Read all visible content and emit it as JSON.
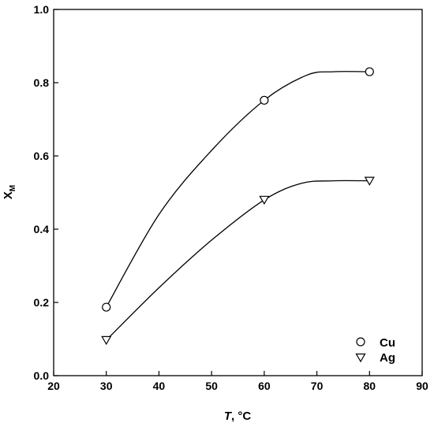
{
  "chart_data": {
    "type": "line",
    "xlabel": "T, °C",
    "xlabel_italic_part": "T",
    "xlabel_rest": ", °C",
    "ylabel": "X",
    "ylabel_subscript": "M",
    "xlim": [
      20,
      90
    ],
    "ylim": [
      0.0,
      1.0
    ],
    "xticks": [
      20,
      30,
      40,
      50,
      60,
      70,
      80,
      90
    ],
    "yticks": [
      0.0,
      0.2,
      0.4,
      0.6,
      0.8,
      1.0
    ],
    "xtick_labels": [
      "20",
      "30",
      "40",
      "50",
      "60",
      "70",
      "80",
      "90"
    ],
    "ytick_labels": [
      "0.0",
      "0.2",
      "0.4",
      "0.6",
      "0.8",
      "1.0"
    ],
    "grid": false,
    "legend_position": "bottom-right",
    "series": [
      {
        "name": "Cu",
        "marker": "circle",
        "x": [
          30,
          60,
          80
        ],
        "y": [
          0.187,
          0.752,
          0.83
        ],
        "curve": [
          [
            30,
            0.187
          ],
          [
            40,
            0.44
          ],
          [
            50,
            0.615
          ],
          [
            60,
            0.752
          ],
          [
            68,
            0.82
          ],
          [
            73,
            0.83
          ],
          [
            80,
            0.83
          ]
        ]
      },
      {
        "name": "Ag",
        "marker": "triangle-down",
        "x": [
          30,
          60,
          80
        ],
        "y": [
          0.097,
          0.48,
          0.532
        ],
        "curve": [
          [
            30,
            0.097
          ],
          [
            40,
            0.24
          ],
          [
            50,
            0.37
          ],
          [
            60,
            0.48
          ],
          [
            67,
            0.525
          ],
          [
            73,
            0.532
          ],
          [
            80,
            0.532
          ]
        ]
      }
    ]
  }
}
